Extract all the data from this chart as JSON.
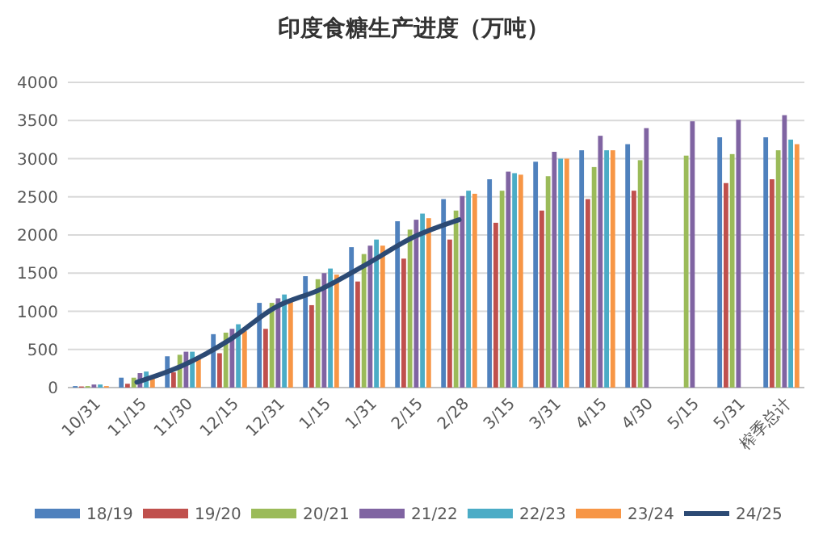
{
  "chart_data": {
    "type": "bar",
    "title": "印度食糖生产进度（万吨）",
    "categories": [
      "10/31",
      "11/15",
      "11/30",
      "12/15",
      "12/31",
      "1/15",
      "1/31",
      "2/15",
      "2/28",
      "3/15",
      "3/31",
      "4/15",
      "4/30",
      "5/15",
      "5/31",
      "榨季总计"
    ],
    "ylim": [
      0,
      4000
    ],
    "yticks": [
      0,
      500,
      1000,
      1500,
      2000,
      2500,
      3000,
      3500,
      4000
    ],
    "grid": "y",
    "legend": "bottom",
    "series": [
      {
        "name": "18/19",
        "color": "#4f81bd",
        "values": [
          20,
          130,
          410,
          700,
          1110,
          1460,
          1840,
          2180,
          2470,
          2730,
          2960,
          3110,
          3190,
          null,
          3280,
          3280
        ]
      },
      {
        "name": "19/20",
        "color": "#c0504d",
        "values": [
          15,
          50,
          200,
          450,
          770,
          1080,
          1390,
          1690,
          1940,
          2160,
          2320,
          2470,
          2580,
          null,
          2680,
          2730
        ]
      },
      {
        "name": "20/21",
        "color": "#9bbb59",
        "values": [
          20,
          130,
          430,
          720,
          1110,
          1420,
          1750,
          2070,
          2320,
          2580,
          2770,
          2890,
          2980,
          3040,
          3060,
          3110
        ]
      },
      {
        "name": "21/22",
        "color": "#8064a2",
        "values": [
          40,
          190,
          470,
          770,
          1170,
          1500,
          1860,
          2200,
          2510,
          2830,
          3090,
          3300,
          3400,
          3490,
          3510,
          3570
        ]
      },
      {
        "name": "22/23",
        "color": "#4bacc6",
        "values": [
          40,
          210,
          470,
          830,
          1220,
          1560,
          1940,
          2280,
          2580,
          2810,
          3000,
          3110,
          null,
          null,
          null,
          3250
        ]
      },
      {
        "name": "23/24",
        "color": "#f79646",
        "values": [
          20,
          140,
          400,
          740,
          1130,
          1480,
          1860,
          2220,
          2540,
          2790,
          3000,
          3110,
          null,
          null,
          null,
          3190
        ]
      },
      {
        "name": "24/25",
        "type": "line",
        "color": "#2c4a74",
        "values": [
          null,
          70,
          290,
          620,
          1050,
          1290,
          1620,
          1970,
          2200,
          null,
          null,
          null,
          null,
          null,
          null,
          null
        ]
      }
    ]
  }
}
